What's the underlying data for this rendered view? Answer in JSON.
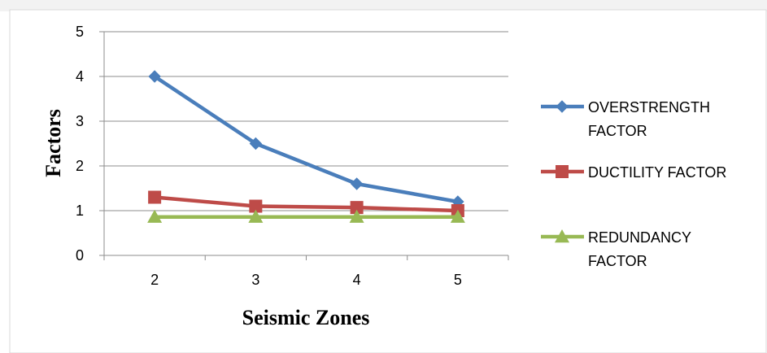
{
  "chart_data": {
    "type": "line",
    "xlabel": "Seismic Zones",
    "ylabel": "Factors",
    "categories": [
      "2",
      "3",
      "4",
      "5"
    ],
    "ylim": [
      0,
      5
    ],
    "y_ticks": [
      "0",
      "1",
      "2",
      "3",
      "4",
      "5"
    ],
    "grid": "horizontal",
    "legend_position": "right",
    "series": [
      {
        "name": "OVERSTRENGTH FACTOR",
        "legend_lines": [
          "OVERSTRENGTH",
          "FACTOR"
        ],
        "color": "#4a7ebb",
        "marker": "diamond",
        "values": [
          4.0,
          2.5,
          1.6,
          1.2
        ]
      },
      {
        "name": "DUCTILITY FACTOR",
        "legend_lines": [
          "DUCTILITY FACTOR"
        ],
        "color": "#be4b48",
        "marker": "square",
        "values": [
          1.3,
          1.1,
          1.07,
          1.0
        ]
      },
      {
        "name": "REDUNDANCY FACTOR",
        "legend_lines": [
          "REDUNDANCY",
          "FACTOR"
        ],
        "color": "#98b954",
        "marker": "triangle",
        "values": [
          0.86,
          0.86,
          0.86,
          0.86
        ]
      }
    ]
  }
}
